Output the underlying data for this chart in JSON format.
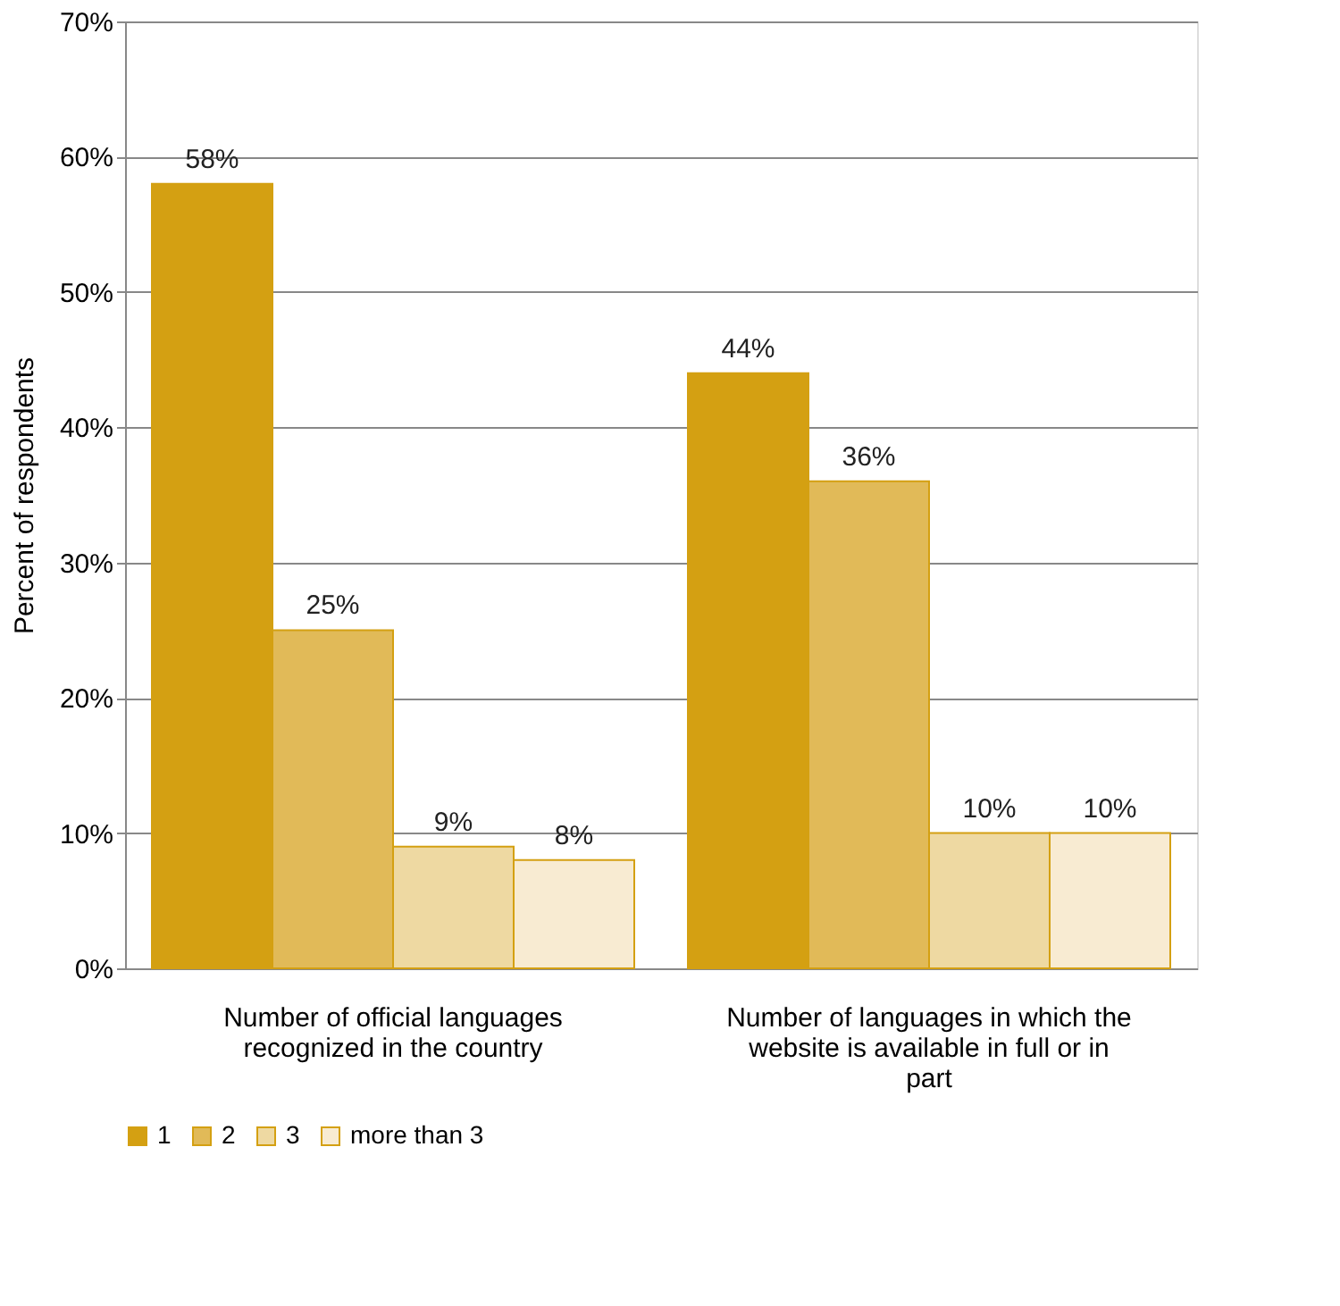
{
  "chart_data": {
    "type": "bar",
    "ylabel": "Percent of respondents",
    "categories": [
      "Number of official languages recognized in the country",
      "Number of languages in which the website is available in full or in part"
    ],
    "series": [
      {
        "name": "1",
        "color": "#d4a012",
        "values": [
          58,
          44
        ]
      },
      {
        "name": "2",
        "color": "#e1ba58",
        "values": [
          25,
          36
        ]
      },
      {
        "name": "3",
        "color": "#eed9a2",
        "values": [
          9,
          10
        ]
      },
      {
        "name": "more than 3",
        "color": "#f8ebd2",
        "values": [
          8,
          10
        ]
      }
    ],
    "ylim": [
      0,
      70
    ],
    "yticks": [
      {
        "value": 0,
        "label": "0%"
      },
      {
        "value": 10,
        "label": "10%"
      },
      {
        "value": 20,
        "label": "20%"
      },
      {
        "value": 30,
        "label": "30%"
      },
      {
        "value": 40,
        "label": "40%"
      },
      {
        "value": 50,
        "label": "50%"
      },
      {
        "value": 60,
        "label": "60%"
      },
      {
        "value": 70,
        "label": "70%"
      }
    ],
    "grid": "y",
    "legend": "bottom",
    "value_labels": [
      [
        "58%",
        "44%"
      ],
      [
        "25%",
        "36%"
      ],
      [
        "9%",
        "10%"
      ],
      [
        "8%",
        "10%"
      ]
    ]
  }
}
